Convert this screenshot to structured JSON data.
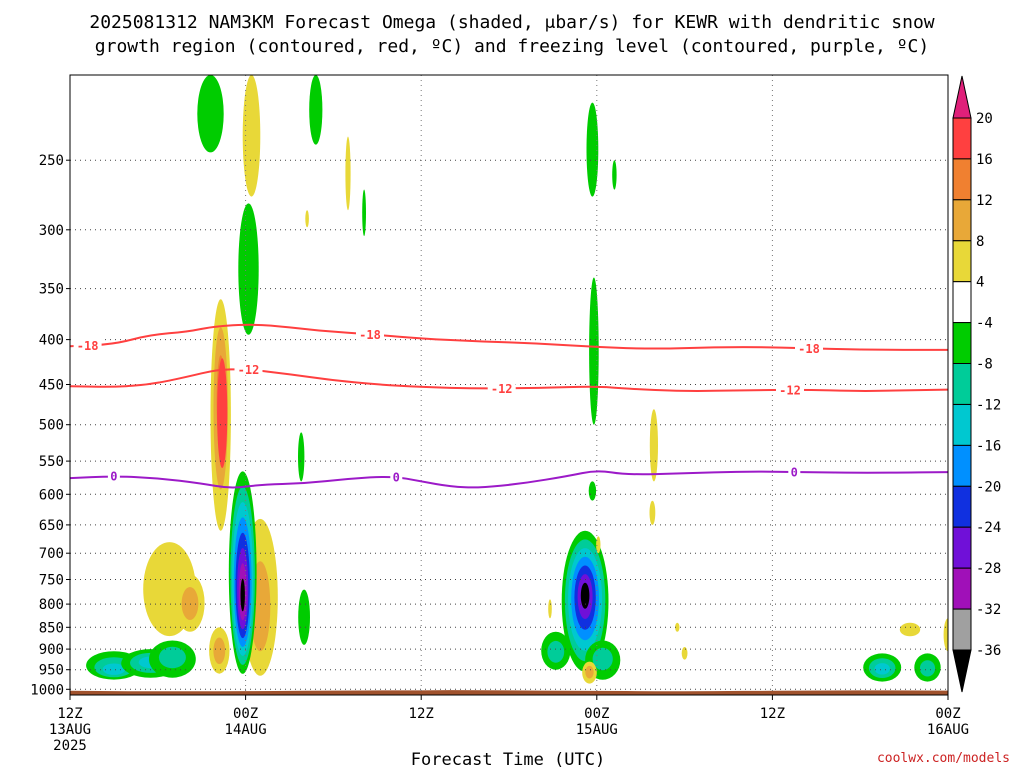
{
  "chart_data": {
    "type": "heatmap",
    "title_lines": [
      "2025081312 NAM3KM Forecast Omega (shaded, μbar/s) for KEWR with dendritic snow",
      "growth region (contoured, red, ºC) and freezing level (contoured, purple, ºC)"
    ],
    "xlabel": "Forecast Time (UTC)",
    "x_range_hours": [
      0,
      60
    ],
    "x_ticks": [
      {
        "hour": 0,
        "lines": [
          "12Z",
          "13AUG",
          "2025"
        ]
      },
      {
        "hour": 12,
        "lines": [
          "00Z",
          "14AUG"
        ]
      },
      {
        "hour": 24,
        "lines": [
          "12Z"
        ]
      },
      {
        "hour": 36,
        "lines": [
          "00Z",
          "15AUG"
        ]
      },
      {
        "hour": 48,
        "lines": [
          "12Z"
        ]
      },
      {
        "hour": 60,
        "lines": [
          "00Z",
          "16AUG"
        ]
      }
    ],
    "y_axis": "pressure_hPa_log_inverted",
    "y_range_hPa": [
      200,
      1015
    ],
    "y_ticks": [
      "250",
      "300",
      "350",
      "400",
      "450",
      "500",
      "550",
      "600",
      "650",
      "700",
      "750",
      "800",
      "850",
      "900",
      "950",
      "1000"
    ],
    "colorbar": {
      "levels": [
        "20",
        "16",
        "12",
        "8",
        "4",
        "-4",
        "-8",
        "-12",
        "-16",
        "-20",
        "-24",
        "-28",
        "-32",
        "-36"
      ],
      "bands": [
        {
          "from": 16,
          "to": 20,
          "color": "#ff4040"
        },
        {
          "from": 12,
          "to": 16,
          "color": "#f08030"
        },
        {
          "from": 8,
          "to": 12,
          "color": "#e8a838"
        },
        {
          "from": 4,
          "to": 8,
          "color": "#e8d838"
        },
        {
          "from": -4,
          "to": 4,
          "color": "#ffffff"
        },
        {
          "from": -8,
          "to": -4,
          "color": "#00cc00"
        },
        {
          "from": -12,
          "to": -8,
          "color": "#00cc99"
        },
        {
          "from": -16,
          "to": -12,
          "color": "#00c8d0"
        },
        {
          "from": -20,
          "to": -16,
          "color": "#0090ff"
        },
        {
          "from": -24,
          "to": -20,
          "color": "#1030e0"
        },
        {
          "from": -28,
          "to": -24,
          "color": "#7010d8"
        },
        {
          "from": -32,
          "to": -28,
          "color": "#a010b8"
        },
        {
          "from": -36,
          "to": -32,
          "color": "#a0a0a0"
        }
      ],
      "over_color": "#e0207a",
      "under_color": "#000000"
    },
    "contours": [
      {
        "level": "-18",
        "color": "#ff4040",
        "points": [
          [
            0,
            407
          ],
          [
            3,
            405
          ],
          [
            5.5,
            395
          ],
          [
            8,
            392
          ],
          [
            10,
            386
          ],
          [
            13,
            384
          ],
          [
            17,
            391
          ],
          [
            21,
            395
          ],
          [
            24,
            399
          ],
          [
            28,
            402
          ],
          [
            32,
            404
          ],
          [
            36,
            408
          ],
          [
            40,
            410
          ],
          [
            44,
            408
          ],
          [
            48,
            408
          ],
          [
            52,
            410
          ],
          [
            56,
            411
          ],
          [
            60,
            411
          ]
        ],
        "labels_at_hours": [
          1.2,
          20.5,
          50.5
        ]
      },
      {
        "level": "-12",
        "color": "#ff4040",
        "points": [
          [
            0,
            452
          ],
          [
            3,
            453
          ],
          [
            5.5,
            450
          ],
          [
            8,
            441
          ],
          [
            10,
            433
          ],
          [
            12,
            432
          ],
          [
            15,
            438
          ],
          [
            18,
            445
          ],
          [
            21,
            450
          ],
          [
            24,
            453
          ],
          [
            28,
            455
          ],
          [
            32,
            454
          ],
          [
            36,
            452
          ],
          [
            38,
            455
          ],
          [
            42,
            458
          ],
          [
            46,
            457
          ],
          [
            50,
            456
          ],
          [
            54,
            458
          ],
          [
            57,
            457
          ],
          [
            60,
            456
          ]
        ],
        "labels_at_hours": [
          12.2,
          29.5,
          49.2
        ]
      },
      {
        "level": "0",
        "color": "#9c1ac8",
        "points": [
          [
            0,
            575
          ],
          [
            3,
            572
          ],
          [
            6,
            575
          ],
          [
            9,
            583
          ],
          [
            11,
            591
          ],
          [
            13,
            585
          ],
          [
            16,
            583
          ],
          [
            19,
            576
          ],
          [
            22,
            572
          ],
          [
            24,
            580
          ],
          [
            26,
            588
          ],
          [
            28,
            590
          ],
          [
            31,
            583
          ],
          [
            34,
            572
          ],
          [
            36,
            563
          ],
          [
            38,
            570
          ],
          [
            42,
            568
          ],
          [
            46,
            565
          ],
          [
            50,
            566
          ],
          [
            53,
            567
          ],
          [
            56,
            567
          ],
          [
            60,
            566
          ]
        ],
        "labels_at_hours": [
          3.0,
          22.3,
          49.5
        ]
      }
    ],
    "omega_features": [
      {
        "hour": 3.0,
        "p": 955,
        "rx": 1.9,
        "lo": 905,
        "hi": 975,
        "levels": [
          -8,
          -12,
          -16
        ]
      },
      {
        "hour": 5.5,
        "p": 930,
        "rx": 2.0,
        "lo": 900,
        "hi": 970,
        "levels": [
          -8,
          -12,
          -16
        ]
      },
      {
        "hour": 7.0,
        "p": 915,
        "rx": 1.6,
        "lo": 880,
        "hi": 970,
        "levels": [
          -8,
          -12
        ]
      },
      {
        "hour": 6.8,
        "p": 760,
        "rx": 1.8,
        "lo": 680,
        "hi": 870,
        "levels": [
          4
        ]
      },
      {
        "hour": 8.2,
        "p": 800,
        "rx": 1.0,
        "lo": 740,
        "hi": 860,
        "levels": [
          4,
          8
        ]
      },
      {
        "hour": 10.3,
        "p": 460,
        "rx": 0.7,
        "lo": 360,
        "hi": 660,
        "levels": [
          4,
          8,
          12
        ]
      },
      {
        "hour": 10.4,
        "p": 480,
        "rx": 0.35,
        "lo": 420,
        "hi": 560,
        "levels": [
          16
        ]
      },
      {
        "hour": 10.2,
        "p": 905,
        "rx": 0.7,
        "lo": 850,
        "hi": 960,
        "levels": [
          4,
          8
        ]
      },
      {
        "hour": 13.0,
        "p": 830,
        "rx": 1.2,
        "lo": 640,
        "hi": 965,
        "levels": [
          4,
          8
        ]
      },
      {
        "hour": 12.4,
        "p": 230,
        "rx": 0.6,
        "lo": 200,
        "hi": 275,
        "levels": [
          4
        ]
      },
      {
        "hour": 9.6,
        "p": 220,
        "rx": 0.9,
        "lo": 200,
        "hi": 245,
        "levels": [
          -8
        ]
      },
      {
        "hour": 12.2,
        "p": 330,
        "rx": 0.7,
        "lo": 280,
        "hi": 395,
        "levels": [
          -8
        ]
      },
      {
        "hour": 11.8,
        "p": 790,
        "rx": 0.95,
        "lo": 565,
        "hi": 960,
        "levels": [
          -8,
          -12,
          -16,
          -20,
          -24,
          -28,
          -32,
          -36
        ]
      },
      {
        "hour": 16.8,
        "p": 220,
        "rx": 0.45,
        "lo": 200,
        "hi": 240,
        "levels": [
          -8
        ]
      },
      {
        "hour": 19.0,
        "p": 260,
        "rx": 0.18,
        "lo": 235,
        "hi": 285,
        "levels": [
          4
        ]
      },
      {
        "hour": 16.2,
        "p": 290,
        "rx": 0.12,
        "lo": 285,
        "hi": 298,
        "levels": [
          4
        ]
      },
      {
        "hour": 20.1,
        "p": 290,
        "rx": 0.13,
        "lo": 270,
        "hi": 305,
        "levels": [
          -8
        ]
      },
      {
        "hour": 15.8,
        "p": 545,
        "rx": 0.22,
        "lo": 510,
        "hi": 580,
        "levels": [
          -8
        ]
      },
      {
        "hour": 16.0,
        "p": 840,
        "rx": 0.4,
        "lo": 770,
        "hi": 890,
        "levels": [
          -8
        ]
      },
      {
        "hour": 35.7,
        "p": 250,
        "rx": 0.4,
        "lo": 215,
        "hi": 275,
        "levels": [
          -8
        ]
      },
      {
        "hour": 35.8,
        "p": 420,
        "rx": 0.33,
        "lo": 340,
        "hi": 500,
        "levels": [
          -8
        ]
      },
      {
        "hour": 35.7,
        "p": 595,
        "rx": 0.25,
        "lo": 580,
        "hi": 610,
        "levels": [
          -8
        ]
      },
      {
        "hour": 35.2,
        "p": 780,
        "rx": 1.6,
        "lo": 660,
        "hi": 955,
        "levels": [
          -8,
          -12,
          -16,
          -20,
          -24,
          -28,
          -36
        ]
      },
      {
        "hour": 33.2,
        "p": 910,
        "rx": 1.0,
        "lo": 860,
        "hi": 950,
        "levels": [
          -8,
          -12
        ]
      },
      {
        "hour": 36.4,
        "p": 920,
        "rx": 1.2,
        "lo": 880,
        "hi": 975,
        "levels": [
          -8,
          -12
        ]
      },
      {
        "hour": 35.5,
        "p": 955,
        "rx": 0.5,
        "lo": 930,
        "hi": 985,
        "levels": [
          4,
          8
        ]
      },
      {
        "hour": 37.2,
        "p": 260,
        "rx": 0.15,
        "lo": 250,
        "hi": 270,
        "levels": [
          -8
        ]
      },
      {
        "hour": 36.1,
        "p": 690,
        "rx": 0.15,
        "lo": 670,
        "hi": 700,
        "levels": [
          4
        ]
      },
      {
        "hour": 32.8,
        "p": 810,
        "rx": 0.12,
        "lo": 790,
        "hi": 830,
        "levels": [
          4
        ]
      },
      {
        "hour": 39.9,
        "p": 520,
        "rx": 0.28,
        "lo": 480,
        "hi": 580,
        "levels": [
          4
        ]
      },
      {
        "hour": 39.8,
        "p": 630,
        "rx": 0.2,
        "lo": 610,
        "hi": 650,
        "levels": [
          4
        ]
      },
      {
        "hour": 41.5,
        "p": 850,
        "rx": 0.15,
        "lo": 840,
        "hi": 860,
        "levels": [
          4
        ]
      },
      {
        "hour": 42.0,
        "p": 910,
        "rx": 0.2,
        "lo": 895,
        "hi": 925,
        "levels": [
          4
        ]
      },
      {
        "hour": 55.5,
        "p": 950,
        "rx": 1.3,
        "lo": 910,
        "hi": 980,
        "levels": [
          -8,
          -12,
          -16
        ]
      },
      {
        "hour": 58.6,
        "p": 950,
        "rx": 0.9,
        "lo": 910,
        "hi": 980,
        "levels": [
          -8,
          -12
        ]
      },
      {
        "hour": 57.4,
        "p": 855,
        "rx": 0.7,
        "lo": 840,
        "hi": 870,
        "levels": [
          4
        ]
      },
      {
        "hour": 60.0,
        "p": 870,
        "rx": 0.3,
        "lo": 830,
        "hi": 905,
        "levels": [
          4
        ]
      }
    ],
    "terrain_color": "#a0522d"
  },
  "credit": "coolwx.com/models"
}
